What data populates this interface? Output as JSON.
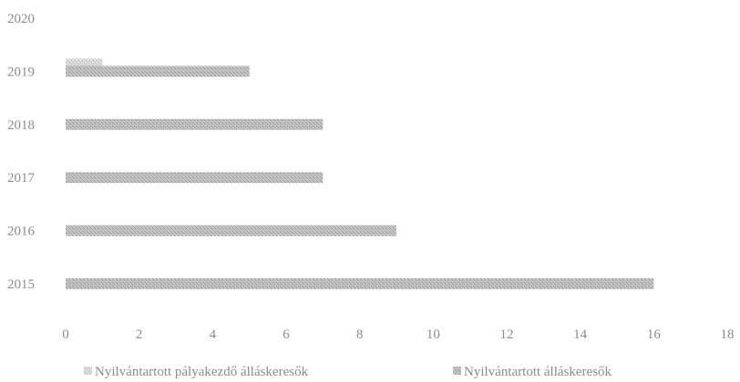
{
  "chart_data": {
    "type": "bar",
    "orientation": "horizontal",
    "stacked": false,
    "categories": [
      "2015",
      "2016",
      "2017",
      "2018",
      "2019",
      "2020"
    ],
    "series": [
      {
        "name": "Nyilvántartott pályakezdő álláskeresők",
        "values": [
          0,
          0,
          0,
          0,
          1,
          0
        ],
        "color": "#c9c9c9"
      },
      {
        "name": "Nyilvántartott álláskeresők",
        "values": [
          16,
          9,
          7,
          7,
          5,
          0
        ],
        "color": "#a8a8a8"
      }
    ],
    "x_ticks": [
      "0",
      "2",
      "4",
      "6",
      "8",
      "10",
      "12",
      "14",
      "16",
      "18"
    ],
    "xlim": [
      0,
      18
    ],
    "title": "",
    "xlabel": "",
    "ylabel": "",
    "grid": false,
    "legend_position": "bottom"
  }
}
